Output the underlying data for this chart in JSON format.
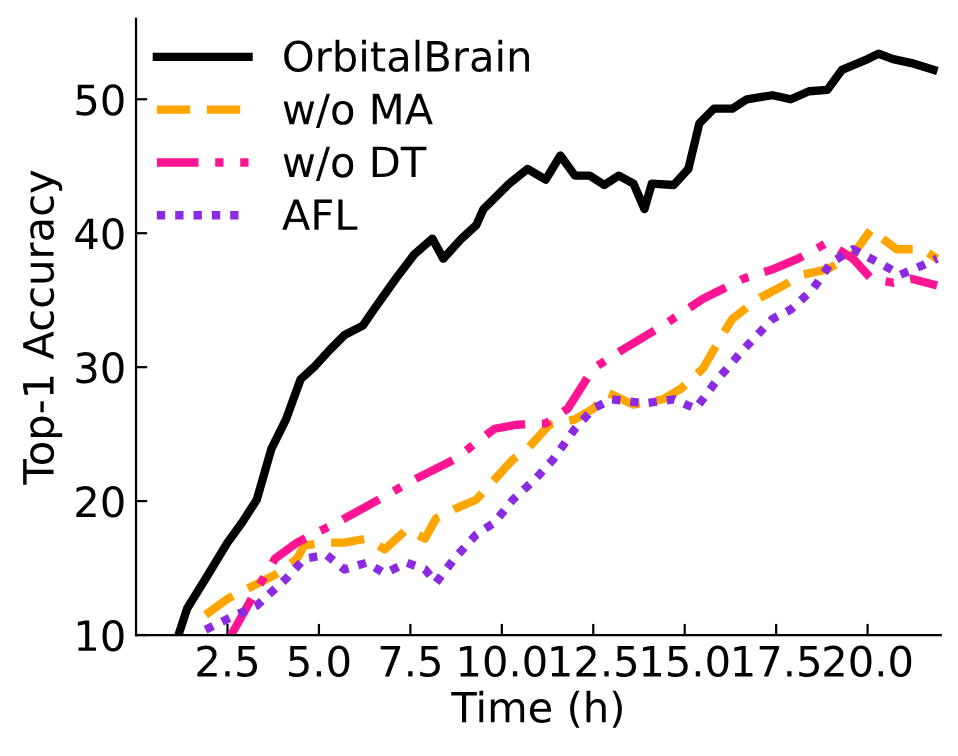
{
  "chart_data": {
    "type": "line",
    "xlabel": "Time (h)",
    "ylabel": "Top-1 Accuracy",
    "xlim": [
      0,
      22
    ],
    "ylim": [
      10,
      56
    ],
    "xticks": [
      {
        "value": 2.5,
        "label": "2.5"
      },
      {
        "value": 5,
        "label": "5.0"
      },
      {
        "value": 7.5,
        "label": "7.5"
      },
      {
        "value": 10,
        "label": "10.0"
      },
      {
        "value": 12.5,
        "label": "12.5"
      },
      {
        "value": 15,
        "label": "15.0"
      },
      {
        "value": 17.5,
        "label": "17.5"
      },
      {
        "value": 20,
        "label": "20.0"
      }
    ],
    "yticks": [
      10,
      20,
      30,
      40,
      50
    ],
    "grid": false,
    "legend": "top left",
    "series": [
      {
        "name": "OrbitalBrain",
        "color": "#000000",
        "line_style": "solid",
        "x": [
          1.16,
          1.4,
          1.9,
          2.5,
          2.9,
          3.3,
          3.7,
          4.1,
          4.5,
          4.9,
          5.3,
          5.7,
          6.2,
          6.5,
          7.1,
          7.6,
          8.1,
          8.4,
          8.9,
          9.3,
          9.5,
          10.2,
          10.7,
          11.2,
          11.6,
          12.0,
          12.4,
          12.8,
          13.2,
          13.6,
          13.9,
          14.1,
          14.7,
          15.1,
          15.4,
          15.8,
          16.3,
          16.7,
          17.4,
          17.9,
          18.4,
          18.9,
          19.3,
          20.0,
          20.3,
          20.7,
          21.2,
          21.8
        ],
        "values": [
          10,
          12,
          14.2,
          16.9,
          18.4,
          20.1,
          23.9,
          26.1,
          29.1,
          30.1,
          31.3,
          32.4,
          33.1,
          34.3,
          36.6,
          38.4,
          39.6,
          38.1,
          39.6,
          40.6,
          41.8,
          43.7,
          44.8,
          44.0,
          45.8,
          44.3,
          44.3,
          43.6,
          44.3,
          43.7,
          41.8,
          43.7,
          43.6,
          44.8,
          48.2,
          49.3,
          49.3,
          50.0,
          50.3,
          50.0,
          50.6,
          50.7,
          52.2,
          53.0,
          53.4,
          53.0,
          52.7,
          52.2
        ]
      },
      {
        "name": "w/o MA",
        "color": "#ffa500",
        "line_style": "dashed",
        "x": [
          1.9,
          2.5,
          3.0,
          3.8,
          4.4,
          4.6,
          5.2,
          5.7,
          6.3,
          6.8,
          7.4,
          7.9,
          8.2,
          8.7,
          9.3,
          9.8,
          10.3,
          10.7,
          11.3,
          12.0,
          12.5,
          12.9,
          13.6,
          14.4,
          14.9,
          15.5,
          15.9,
          16.3,
          17.0,
          17.7,
          18.2,
          18.9,
          19.6,
          20.1,
          20.4,
          20.8,
          21.5,
          21.9
        ],
        "values": [
          11.5,
          12.7,
          13.4,
          14.5,
          15.7,
          16.7,
          16.9,
          16.9,
          17.2,
          16.4,
          17.9,
          17.2,
          18.7,
          19.4,
          20.1,
          21.6,
          23.1,
          23.9,
          25.7,
          26.1,
          26.9,
          28.1,
          27.2,
          27.6,
          28.4,
          29.9,
          31.8,
          33.6,
          35.1,
          36.1,
          36.9,
          37.3,
          38.4,
          40.3,
          39.6,
          38.8,
          38.8,
          38.1
        ]
      },
      {
        "name": "w/o DT",
        "color": "#ff1493",
        "line_style": "dashdot",
        "x": [
          2.6,
          3.3,
          3.8,
          4.4,
          4.9,
          5.5,
          6.5,
          7.6,
          8.7,
          9.8,
          10.4,
          11.2,
          11.8,
          12.5,
          13.3,
          14.4,
          15.5,
          16.6,
          17.4,
          18.1,
          18.9,
          19.6,
          20.1,
          20.7,
          21.2,
          21.9
        ],
        "values": [
          10,
          13.4,
          15.7,
          16.9,
          17.6,
          18.4,
          19.9,
          21.6,
          23.1,
          25.4,
          25.7,
          25.8,
          26.9,
          29.9,
          31.3,
          33.1,
          35.1,
          36.6,
          37.3,
          38.1,
          39.3,
          38.1,
          36.6,
          36.3,
          36.6,
          36.1
        ]
      },
      {
        "name": "AFL",
        "color": "#8a2be2",
        "line_style": "dotted",
        "x": [
          1.9,
          2.5,
          3.3,
          4.1,
          4.6,
          5.2,
          5.7,
          6.3,
          6.8,
          7.4,
          7.9,
          8.2,
          8.7,
          9.3,
          9.8,
          10.3,
          10.9,
          11.4,
          12.0,
          12.5,
          13.0,
          13.9,
          14.7,
          15.3,
          15.9,
          16.6,
          17.4,
          17.9,
          18.5,
          19.0,
          19.6,
          20.3,
          20.9,
          21.5,
          21.9
        ],
        "values": [
          10.4,
          11.2,
          12.2,
          14.2,
          15.7,
          16.0,
          14.9,
          15.4,
          14.6,
          15.4,
          14.9,
          13.9,
          15.7,
          17.5,
          18.4,
          20.1,
          21.6,
          23.1,
          25.4,
          26.9,
          27.6,
          27.3,
          27.6,
          26.9,
          29.1,
          31.3,
          33.6,
          34.3,
          35.8,
          37.8,
          38.8,
          37.8,
          36.9,
          37.6,
          38.1
        ]
      }
    ]
  }
}
